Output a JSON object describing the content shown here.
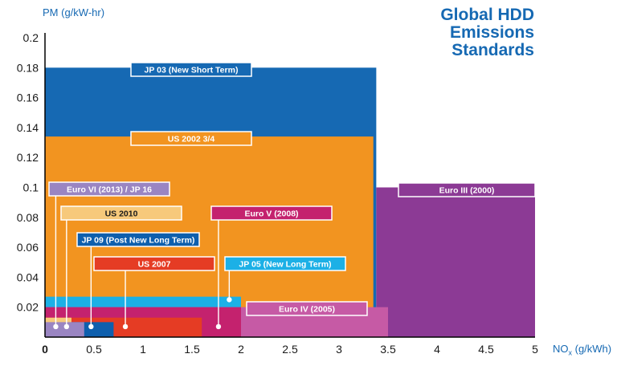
{
  "title_lines": [
    "Global HDD",
    "Emissions",
    "Standards"
  ],
  "colors": {
    "title": "#1669b3",
    "axis": "#000000",
    "jp03": "#1669b3",
    "us2002": "#f29420",
    "euro3": "#8c3a95",
    "euro4": "#c65aa5",
    "euro5": "#c4226e",
    "us2007": "#e53c24",
    "jp09": "#0e5fad",
    "us2010": "#f7c97b",
    "euro6": "#9a85c2",
    "jp05": "#1cb0e6"
  },
  "chart_data": {
    "type": "area",
    "title": "Global HDD Emissions Standards",
    "ylabel": "PM (g/kW-hr)",
    "xlabel": "NO",
    "xlabel_sub": "x",
    "xlabel_suffix": " (g/kWh)",
    "xlim": [
      0,
      5
    ],
    "ylim": [
      0,
      0.2
    ],
    "x_ticks": [
      "0",
      "0.5",
      "1",
      "1.5",
      "2",
      "2.5",
      "3",
      "3.5",
      "4",
      "4.5",
      "5"
    ],
    "y_ticks": [
      "0.02",
      "0.04",
      "0.06",
      "0.08",
      "0.1",
      "0.12",
      "0.14",
      "0.16",
      "0.18",
      "0.2"
    ],
    "standards": [
      {
        "name": "JP 03 (New Short Term)",
        "nox": 3.38,
        "pm": 0.18,
        "color_key": "jp03"
      },
      {
        "name": "US 2002 3/4",
        "nox": 3.35,
        "pm": 0.134,
        "color_key": "us2002"
      },
      {
        "name": "Euro III (2000)",
        "nox": 5.0,
        "pm": 0.1,
        "color_key": "euro3",
        "nox_start": 3.38
      },
      {
        "name": "JP 05 (New Long Term)",
        "nox": 2.0,
        "pm": 0.027,
        "color_key": "jp05"
      },
      {
        "name": "Euro IV (2005)",
        "nox": 3.5,
        "pm": 0.02,
        "color_key": "euro4"
      },
      {
        "name": "Euro V (2008)",
        "nox": 2.0,
        "pm": 0.02,
        "color_key": "euro5"
      },
      {
        "name": "US 2007",
        "nox": 1.6,
        "pm": 0.013,
        "color_key": "us2007"
      },
      {
        "name": "JP 09 (Post New Long Term)",
        "nox": 0.7,
        "pm": 0.01,
        "color_key": "jp09"
      },
      {
        "name": "US 2010",
        "nox": 0.27,
        "pm": 0.013,
        "color_key": "us2010"
      },
      {
        "name": "Euro VI (2013) / JP 16",
        "nox": 0.4,
        "pm": 0.01,
        "color_key": "euro6"
      }
    ],
    "callouts": [
      {
        "key": "jp03",
        "text": "JP 03 (New Short Term)",
        "fill": "jp03",
        "pointer": null
      },
      {
        "key": "us2002",
        "text": "US 2002 3/4",
        "fill": "us2002",
        "pointer": null
      },
      {
        "key": "euro3",
        "text": "Euro III (2000)",
        "fill": "euro3",
        "pointer": null
      },
      {
        "key": "euro6",
        "text": "Euro VI (2013) / JP 16",
        "fill": "euro6",
        "pointer": {
          "nox": 0.11,
          "pm": 0.007
        }
      },
      {
        "key": "us2010",
        "text": "US 2010",
        "fill": "us2010",
        "pointer": {
          "nox": 0.22,
          "pm": 0.007
        }
      },
      {
        "key": "euro5",
        "text": "Euro V (2008)",
        "fill": "euro5",
        "pointer": {
          "nox": 1.77,
          "pm": 0.007
        }
      },
      {
        "key": "jp09",
        "text": "JP 09 (Post New Long Term)",
        "fill": "jp09",
        "pointer": {
          "nox": 0.47,
          "pm": 0.007
        }
      },
      {
        "key": "us2007",
        "text": "US 2007",
        "fill": "us2007",
        "pointer": {
          "nox": 0.82,
          "pm": 0.007
        }
      },
      {
        "key": "jp05",
        "text": "JP 05 (New Long Term)",
        "fill": "jp05",
        "pointer": {
          "nox": 1.88,
          "pm": 0.025
        }
      },
      {
        "key": "euro4",
        "text": "Euro IV (2005)",
        "fill": "euro4",
        "pointer": null
      }
    ]
  }
}
